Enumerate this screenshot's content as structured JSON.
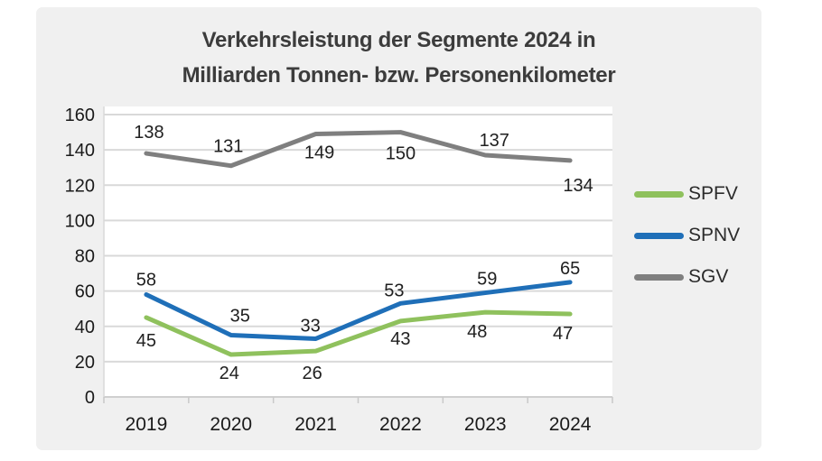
{
  "page": {
    "background": "#FFFFFF",
    "card_background": "#F0F0F0"
  },
  "chart_data": {
    "type": "line",
    "title": "Verkehrsleistung der Segmente 2024 in Milliarden Tonnen- bzw. Personenkilometer",
    "title_lines": [
      "Verkehrsleistung der Segmente 2024 in",
      "Milliarden Tonnen- bzw. Personenkilometer"
    ],
    "xlabel": "",
    "ylabel": "",
    "categories": [
      "2019",
      "2020",
      "2021",
      "2022",
      "2023",
      "2024"
    ],
    "series": [
      {
        "name": "SPFV",
        "color": "#8FC15D",
        "values": [
          45,
          24,
          26,
          43,
          48,
          47
        ],
        "label_offsets": [
          [
            0,
            25
          ],
          [
            -2,
            20
          ],
          [
            -4,
            24
          ],
          [
            0,
            19
          ],
          [
            -9,
            21
          ],
          [
            -8,
            21
          ]
        ]
      },
      {
        "name": "SPNV",
        "color": "#1F6FB8",
        "values": [
          58,
          35,
          33,
          53,
          59,
          65
        ],
        "label_offsets": [
          [
            0,
            -17
          ],
          [
            10,
            -22
          ],
          [
            -6,
            -15
          ],
          [
            -7,
            -15
          ],
          [
            2,
            -16
          ],
          [
            0,
            -16
          ]
        ]
      },
      {
        "name": "SGV",
        "color": "#7F7F7F",
        "values": [
          138,
          131,
          149,
          150,
          137,
          134
        ],
        "label_offsets": [
          [
            3,
            -24
          ],
          [
            -3,
            -22
          ],
          [
            4,
            20
          ],
          [
            0,
            23
          ],
          [
            10,
            -17
          ],
          [
            9,
            27
          ]
        ]
      }
    ],
    "ylim": [
      0,
      160
    ],
    "yticks": [
      0,
      20,
      40,
      60,
      80,
      100,
      120,
      140,
      160
    ],
    "grid": true,
    "legend_position": "right",
    "colors": {
      "grid_line": "#D9D9D9",
      "axis_line": "#CFCFCF",
      "tick_mark": "#C9C9C9",
      "tick_label": "#1A1A1A",
      "data_label": "#202020",
      "plot_background": "#FFFFFF"
    }
  }
}
